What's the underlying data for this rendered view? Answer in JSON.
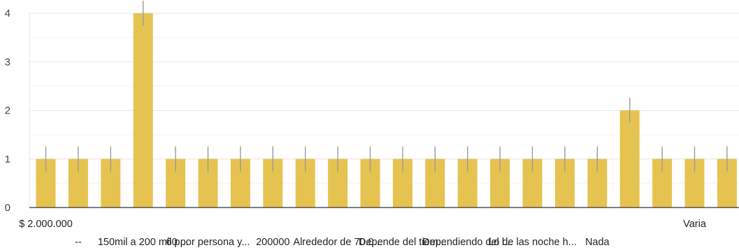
{
  "chart_data": {
    "type": "bar",
    "categories": [
      "$ 2.000.000",
      "--",
      "",
      "150mil a 200 mil p...",
      "",
      "60 por persona y...",
      "",
      "200000",
      "",
      "Alrededor de 70.0...",
      "",
      "Depende del tiem...",
      "",
      "Dependiendo del l...",
      "",
      "Lo de las noche h...",
      "",
      "Nada",
      "",
      "",
      "Varia",
      ""
    ],
    "values": [
      1,
      1,
      1,
      4,
      1,
      1,
      1,
      1,
      1,
      1,
      1,
      1,
      1,
      1,
      1,
      1,
      1,
      1,
      2,
      1,
      1,
      1
    ],
    "ylim": [
      0,
      4
    ],
    "yticks": [
      "0",
      "1",
      "2",
      "3",
      "4"
    ],
    "grid": true,
    "bar_color": "#e6c350",
    "error_bar_color": "#9a9a9a"
  }
}
